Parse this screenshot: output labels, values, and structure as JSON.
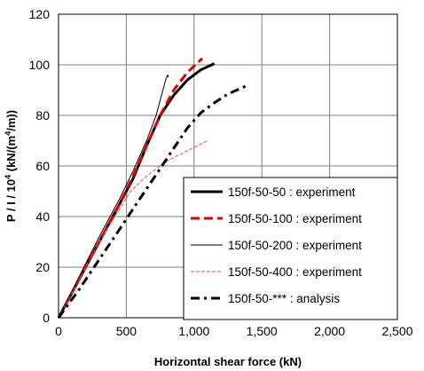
{
  "chart_data": {
    "type": "line",
    "xlabel": "Horizontal shear force  (kN)",
    "ylabel": {
      "prefix": "P / I  / 10",
      "prefix_sup": "4",
      "unit_pre": "  (kN/(m",
      "unit_sup": "4",
      "unit_post": "/m))"
    },
    "xlim": [
      0,
      2500
    ],
    "ylim": [
      0,
      120
    ],
    "x_ticks": [
      {
        "value": 0,
        "label": "0"
      },
      {
        "value": 500,
        "label": "500"
      },
      {
        "value": 1000,
        "label": "1,000"
      },
      {
        "value": 1500,
        "label": "1,500"
      },
      {
        "value": 2000,
        "label": "2,000"
      },
      {
        "value": 2500,
        "label": "2,500"
      }
    ],
    "y_ticks": [
      {
        "value": 0,
        "label": "0"
      },
      {
        "value": 20,
        "label": "20"
      },
      {
        "value": 40,
        "label": "40"
      },
      {
        "value": 60,
        "label": "60"
      },
      {
        "value": 80,
        "label": "80"
      },
      {
        "value": 100,
        "label": "100"
      },
      {
        "value": 120,
        "label": "120"
      }
    ],
    "grid": true,
    "legend_position": "bottom-right",
    "series": [
      {
        "name": "150f-50-50 :  experiment",
        "color": "#000000",
        "style": "solid-thick",
        "points": [
          [
            0,
            0
          ],
          [
            150,
            15
          ],
          [
            300,
            30
          ],
          [
            450,
            45
          ],
          [
            550,
            55
          ],
          [
            650,
            68
          ],
          [
            750,
            80
          ],
          [
            850,
            88
          ],
          [
            950,
            94
          ],
          [
            1050,
            98
          ],
          [
            1150,
            100.5
          ]
        ]
      },
      {
        "name": "150f-50-100 : experiment",
        "color": "#e00000",
        "style": "dashed-thick",
        "points": [
          [
            0,
            0
          ],
          [
            150,
            15
          ],
          [
            300,
            30
          ],
          [
            450,
            45
          ],
          [
            550,
            56
          ],
          [
            650,
            68
          ],
          [
            750,
            80
          ],
          [
            850,
            90
          ],
          [
            950,
            97
          ],
          [
            1060,
            102.5
          ]
        ]
      },
      {
        "name": "150f-50-200 : experiment",
        "color": "#000000",
        "style": "solid-thin",
        "points": [
          [
            0,
            0
          ],
          [
            150,
            16
          ],
          [
            300,
            32
          ],
          [
            450,
            47
          ],
          [
            550,
            58
          ],
          [
            650,
            70
          ],
          [
            720,
            80
          ],
          [
            760,
            88
          ],
          [
            790,
            94
          ],
          [
            805,
            96
          ],
          [
            810,
            95
          ]
        ]
      },
      {
        "name": "150f-50-400 : experiment",
        "color": "#ff4040",
        "style": "dashed-thin",
        "points": [
          [
            0,
            0
          ],
          [
            150,
            15
          ],
          [
            300,
            30
          ],
          [
            450,
            43
          ],
          [
            530,
            50
          ],
          [
            650,
            56
          ],
          [
            800,
            62
          ],
          [
            950,
            66
          ],
          [
            1100,
            70
          ]
        ]
      },
      {
        "name": "150f-50-*** :  analysis",
        "color": "#000000",
        "style": "dashdot-thick",
        "points": [
          [
            0,
            0
          ],
          [
            150,
            11
          ],
          [
            300,
            23
          ],
          [
            450,
            35
          ],
          [
            550,
            43
          ],
          [
            650,
            51
          ],
          [
            750,
            59
          ],
          [
            850,
            67
          ],
          [
            950,
            75
          ],
          [
            1050,
            81
          ],
          [
            1150,
            85
          ],
          [
            1250,
            88.5
          ],
          [
            1400,
            92
          ]
        ]
      }
    ]
  }
}
